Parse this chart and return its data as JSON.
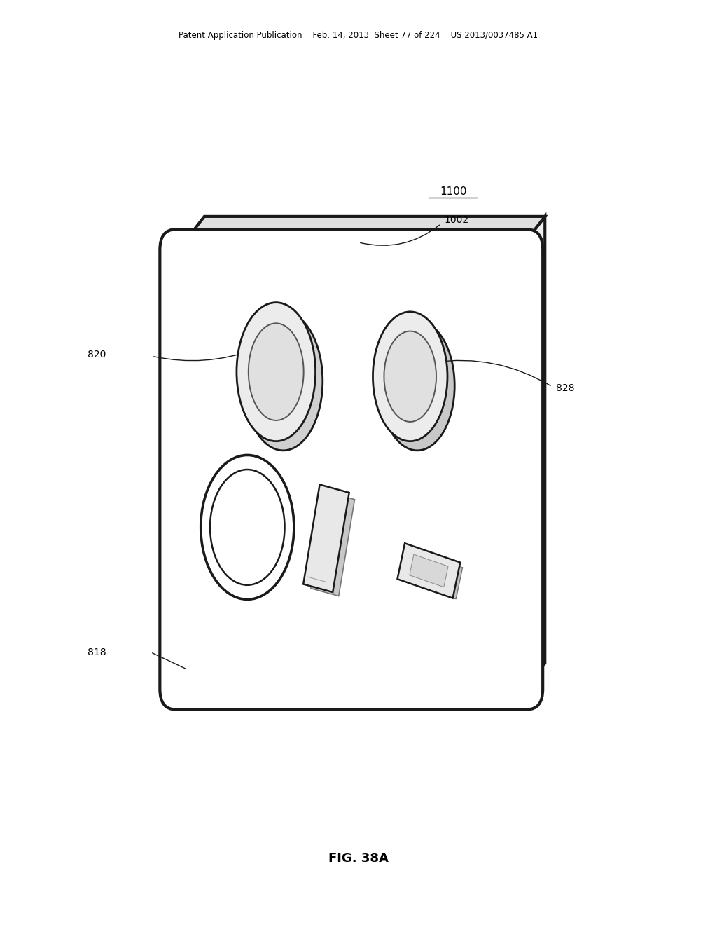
{
  "bg_color": "#ffffff",
  "header_text": "Patent Application Publication    Feb. 14, 2013  Sheet 77 of 224    US 2013/0037485 A1",
  "figure_label": "FIG. 38A",
  "label_1100": "1100",
  "label_1002": "1002",
  "label_820": "820",
  "label_828": "828",
  "label_818": "818",
  "line_color": "#1a1a1a",
  "line_width": 2.0
}
